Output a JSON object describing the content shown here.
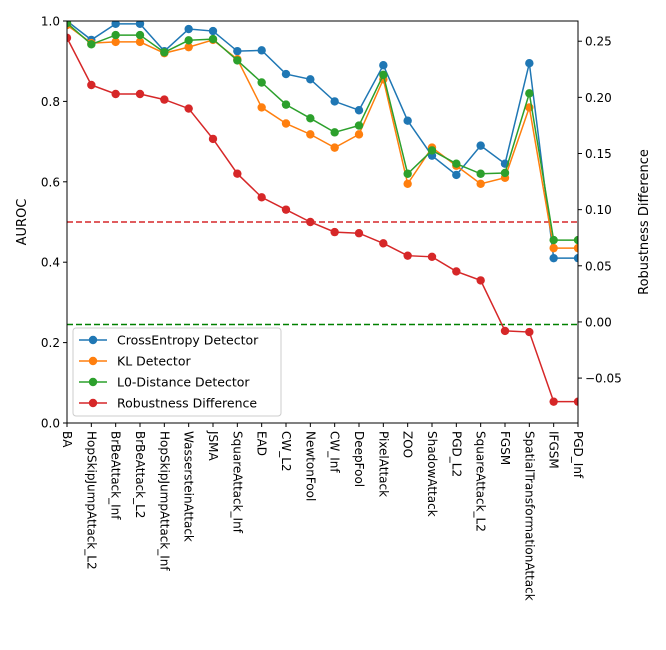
{
  "chart_data": {
    "type": "line",
    "categories": [
      "BA",
      "HopSkipJumpAttack_L2",
      "BrBeAttack_Inf",
      "BrBeAttack_L2",
      "HopSkipJumpAttack_Inf",
      "WassersteinAttack",
      "JSMA",
      "SquareAttack_Inf",
      "EAD",
      "CW_L2",
      "NewtonFool",
      "CW_Inf",
      "DeepFool",
      "PixelAttack",
      "ZOO",
      "ShadowAttack",
      "PGD_L2",
      "SquareAttack_L2",
      "FGSM",
      "SpatialTransformationAttack",
      "IFGSM",
      "PGD_Inf"
    ],
    "left_axis": {
      "label": "AUROC",
      "ylim": [
        0,
        1.0
      ],
      "ticks": [
        0.0,
        0.2,
        0.4,
        0.6,
        0.8,
        1.0
      ],
      "tick_labels": [
        "0.0",
        "0.2",
        "0.4",
        "0.6",
        "0.8",
        "1.0"
      ]
    },
    "right_axis": {
      "label": "Robustness Difference",
      "ylim": [
        -0.09,
        0.268
      ],
      "ticks": [
        -0.05,
        0.0,
        0.05,
        0.1,
        0.15,
        0.2,
        0.25
      ],
      "tick_labels": [
        "−0.05",
        "0.00",
        "0.05",
        "0.10",
        "0.15",
        "0.20",
        "0.25"
      ]
    },
    "series": [
      {
        "name": "CrossEntropy Detector",
        "axis": "left",
        "color": "#1f77b4",
        "values": [
          1.0,
          0.953,
          0.993,
          0.993,
          0.925,
          0.98,
          0.975,
          0.925,
          0.927,
          0.868,
          0.855,
          0.8,
          0.778,
          0.89,
          0.752,
          0.665,
          0.617,
          0.69,
          0.645,
          0.895,
          0.41,
          0.41
        ]
      },
      {
        "name": "KL Detector",
        "axis": "left",
        "color": "#ff7f0e",
        "values": [
          0.99,
          0.945,
          0.948,
          0.948,
          0.92,
          0.935,
          0.953,
          0.905,
          0.785,
          0.745,
          0.718,
          0.685,
          0.718,
          0.855,
          0.595,
          0.685,
          0.64,
          0.595,
          0.61,
          0.785,
          0.435,
          0.435
        ]
      },
      {
        "name": "L0-Distance Detector",
        "axis": "left",
        "color": "#2ca02c",
        "values": [
          0.995,
          0.942,
          0.965,
          0.965,
          0.922,
          0.952,
          0.955,
          0.902,
          0.847,
          0.792,
          0.758,
          0.723,
          0.74,
          0.866,
          0.62,
          0.678,
          0.645,
          0.62,
          0.622,
          0.82,
          0.455,
          0.455
        ]
      },
      {
        "name": "Robustness Difference",
        "axis": "right",
        "color": "#d62728",
        "values": [
          0.253,
          0.211,
          0.203,
          0.203,
          0.198,
          0.19,
          0.163,
          0.132,
          0.111,
          0.1,
          0.089,
          0.08,
          0.079,
          0.07,
          0.059,
          0.058,
          0.045,
          0.037,
          -0.008,
          -0.009,
          -0.071,
          -0.071
        ]
      }
    ],
    "reference_lines": [
      {
        "axis": "left",
        "value": 0.5,
        "color": "#d62728",
        "style": "dashed"
      },
      {
        "axis": "left",
        "value": 0.245,
        "color": "#008000",
        "style": "dashed"
      }
    ],
    "legend": {
      "placement": "lower-left"
    },
    "grid": false
  }
}
